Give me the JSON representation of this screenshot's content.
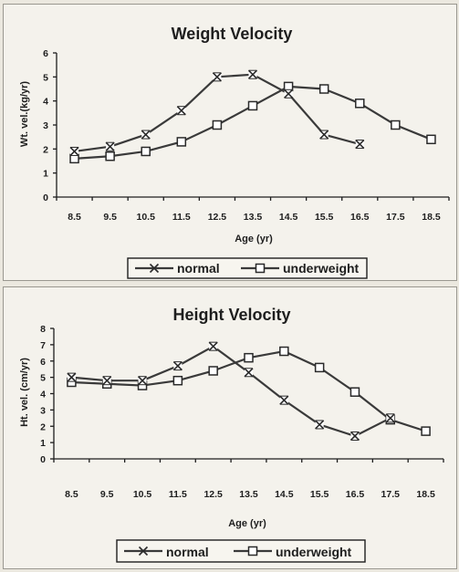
{
  "chart_data": [
    {
      "type": "line",
      "title": "Weight Velocity",
      "xlabel": "Age (yr)",
      "ylabel": "Wt. vel.(kg/yr)",
      "ylim": [
        0,
        6
      ],
      "yticks": [
        "0",
        "1",
        "2",
        "3",
        "4",
        "5",
        "6"
      ],
      "categories": [
        "8.5",
        "9.5",
        "10.5",
        "11.5",
        "12.5",
        "13.5",
        "14.5",
        "15.5",
        "16.5",
        "17.5",
        "18.5"
      ],
      "legend_position": "bottom",
      "grid": false,
      "series": [
        {
          "name": "normal",
          "marker": "x",
          "values": [
            1.9,
            2.1,
            2.6,
            3.6,
            5.0,
            5.1,
            4.3,
            2.6,
            2.2,
            null,
            null
          ]
        },
        {
          "name": "underweight",
          "marker": "square",
          "values": [
            1.6,
            1.7,
            1.9,
            2.3,
            3.0,
            3.8,
            4.6,
            4.5,
            3.9,
            3.0,
            2.4
          ]
        }
      ]
    },
    {
      "type": "line",
      "title": "Height Velocity",
      "xlabel": "Age (yr)",
      "ylabel": "Ht. vel. (cm/yr)",
      "ylim": [
        0,
        8
      ],
      "yticks": [
        "0",
        "1",
        "2",
        "3",
        "4",
        "5",
        "6",
        "7",
        "8"
      ],
      "categories": [
        "8.5",
        "9.5",
        "10.5",
        "11.5",
        "12.5",
        "13.5",
        "14.5",
        "15.5",
        "16.5",
        "17.5",
        "18.5"
      ],
      "legend_position": "bottom",
      "grid": false,
      "series": [
        {
          "name": "normal",
          "marker": "x",
          "values": [
            5.0,
            4.8,
            4.8,
            5.7,
            6.9,
            5.3,
            3.6,
            2.1,
            1.4,
            2.5,
            null
          ]
        },
        {
          "name": "underweight",
          "marker": "square",
          "values": [
            4.7,
            4.6,
            4.5,
            4.8,
            5.4,
            6.2,
            6.6,
            5.6,
            4.1,
            2.4,
            1.7
          ]
        }
      ]
    }
  ],
  "colors": {
    "line": "#3a3a3a",
    "text": "#1e1e1e",
    "panel": "#f4f2ec",
    "page": "#ebe8df"
  }
}
